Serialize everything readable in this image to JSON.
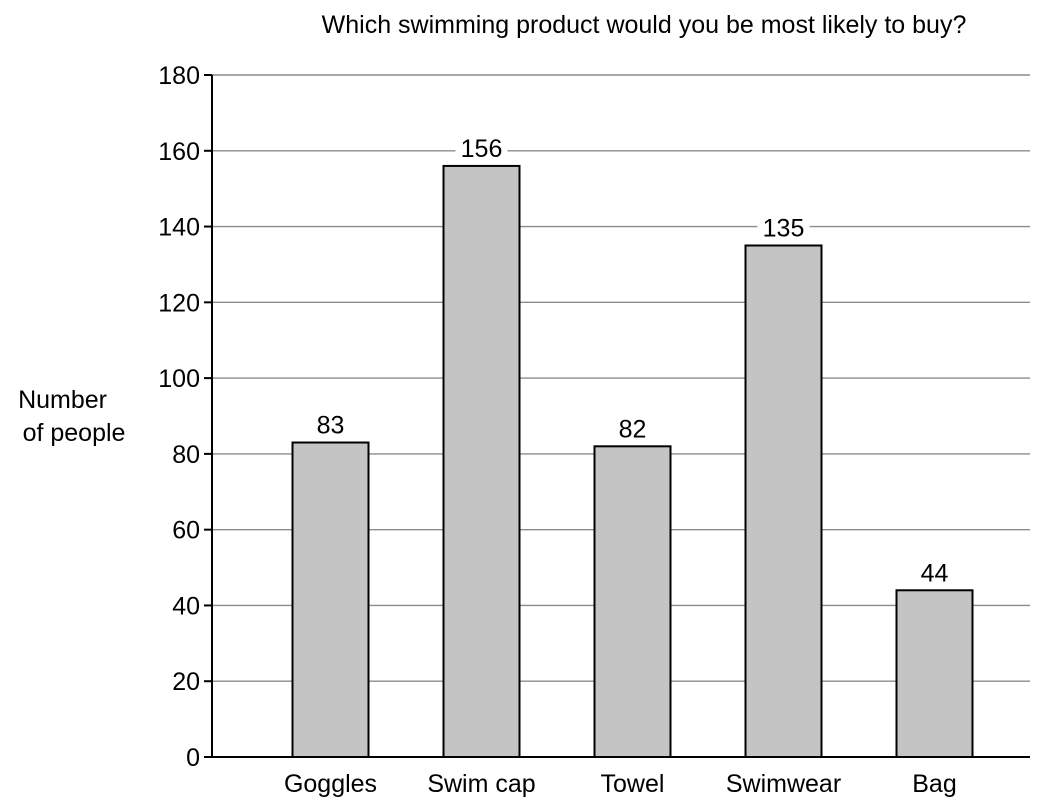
{
  "chart_data": {
    "type": "bar",
    "title": "Which swimming product would you be most likely to buy?",
    "xlabel": "",
    "ylabel": [
      "Number",
      "of people"
    ],
    "categories": [
      "Goggles",
      "Swim cap",
      "Towel",
      "Swimwear",
      "Bag"
    ],
    "values": [
      83,
      156,
      82,
      135,
      44
    ],
    "data_labels": [
      "83",
      "156",
      "82",
      "135",
      "44"
    ],
    "ylim": [
      0,
      180
    ],
    "yticks": [
      0,
      20,
      40,
      60,
      80,
      100,
      120,
      140,
      160,
      180
    ],
    "grid": true,
    "legend": "none",
    "colors": {
      "bar_fill": "#c4c4c4",
      "bar_stroke": "#000000",
      "grid": "#8c8c8c",
      "axis": "#000000"
    }
  }
}
